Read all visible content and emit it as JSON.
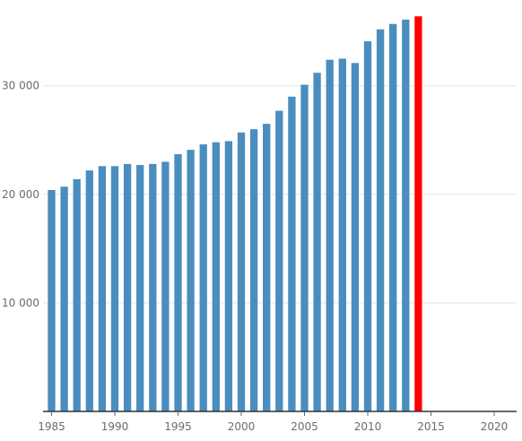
{
  "chart_data": {
    "type": "bar",
    "title": "",
    "xlabel": "",
    "ylabel": "",
    "x": [
      1985,
      1986,
      1987,
      1988,
      1989,
      1990,
      1991,
      1992,
      1993,
      1994,
      1995,
      1996,
      1997,
      1998,
      1999,
      2000,
      2001,
      2002,
      2003,
      2004,
      2005,
      2006,
      2007,
      2008,
      2009,
      2010,
      2011,
      2012,
      2013,
      2014
    ],
    "values": [
      20400,
      20700,
      21400,
      22200,
      22600,
      22600,
      22800,
      22700,
      22800,
      23000,
      23700,
      24100,
      24600,
      24800,
      24900,
      25700,
      26000,
      26500,
      27700,
      29000,
      30100,
      31200,
      32400,
      32500,
      32100,
      34100,
      35200,
      35700,
      36100,
      36400
    ],
    "highlight": {
      "x": 2014,
      "color": "#ff0000"
    },
    "bar_color": "#4a8dbf",
    "xlim": [
      1985,
      2021
    ],
    "ylim": [
      0,
      36500
    ],
    "x_ticks": [
      1985,
      1990,
      1995,
      2000,
      2005,
      2010,
      2015,
      2020
    ],
    "y_ticks": [
      10000,
      20000,
      30000
    ],
    "x_tick_labels": [
      "1985",
      "1990",
      "1995",
      "2000",
      "2005",
      "2010",
      "2015",
      "2020"
    ],
    "y_tick_labels": [
      "10 000",
      "20 000",
      "30 000"
    ],
    "grid": true,
    "legend": "none"
  }
}
